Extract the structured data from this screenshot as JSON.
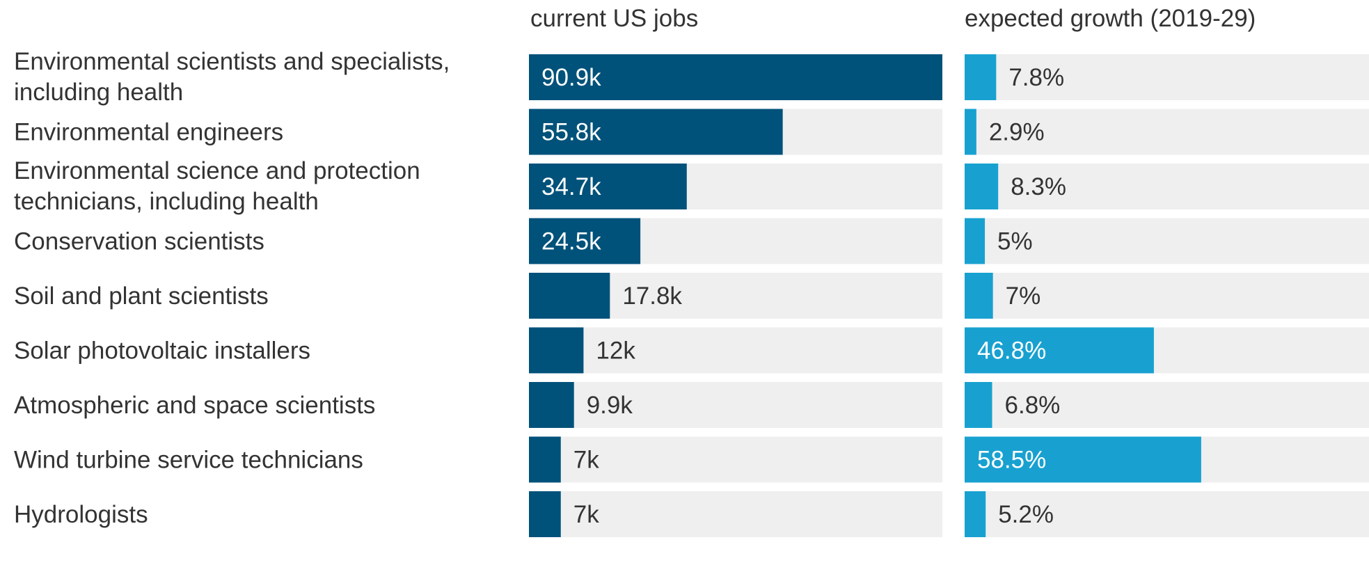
{
  "colors": {
    "jobs_bar": "#00527a",
    "growth_bar": "#18a1d0",
    "track": "#efefef",
    "text_dark": "#333333",
    "text_on_bar": "#ffffff"
  },
  "chart_data": {
    "type": "bar",
    "orientation": "horizontal",
    "title": "",
    "categories": [
      [
        "Environmental scientists and specialists,",
        "including health"
      ],
      [
        "Environmental engineers"
      ],
      [
        "Environmental science and protection",
        "technicians, including health"
      ],
      [
        "Conservation scientists"
      ],
      [
        "Soil and plant scientists"
      ],
      [
        "Solar photovoltaic installers"
      ],
      [
        "Atmospheric and space scientists"
      ],
      [
        "Wind turbine service technicians"
      ],
      [
        "Hydrologists"
      ]
    ],
    "series": [
      {
        "name": "current US jobs",
        "values": [
          90.9,
          55.8,
          34.7,
          24.5,
          17.8,
          12,
          9.9,
          7,
          7
        ],
        "labels": [
          "90.9k",
          "55.8k",
          "34.7k",
          "24.5k",
          "17.8k",
          "12k",
          "9.9k",
          "7k",
          "7k"
        ],
        "xlim": [
          0,
          90.9
        ]
      },
      {
        "name": "expected growth (2019-29)",
        "values": [
          7.8,
          2.9,
          8.3,
          5,
          7,
          46.8,
          6.8,
          58.5,
          5.2
        ],
        "labels": [
          "7.8%",
          "2.9%",
          "8.3%",
          "5%",
          "7%",
          "46.8%",
          "6.8%",
          "58.5%",
          "5.2%"
        ],
        "xlim": [
          0,
          100
        ]
      }
    ],
    "legend": "none",
    "grid": false
  }
}
